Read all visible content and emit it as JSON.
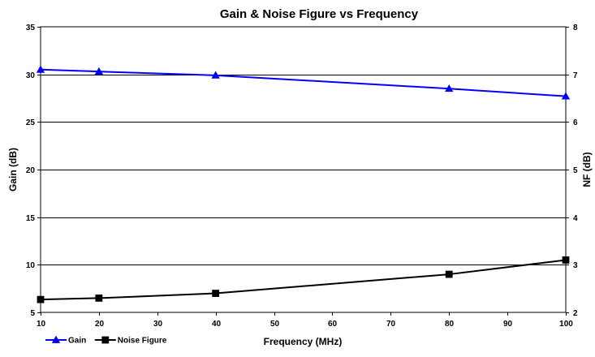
{
  "chart_data": {
    "type": "line",
    "title": "Gain & Noise Figure vs Frequency",
    "xlabel": "Frequency (MHz)",
    "ylabel_left": "Gain (dB)",
    "ylabel_right": "NF (dB)",
    "xlim": [
      10,
      100
    ],
    "x_ticks": [
      10,
      20,
      30,
      40,
      50,
      60,
      70,
      80,
      90,
      100
    ],
    "ylim_left": [
      5,
      35
    ],
    "y_ticks_left": [
      5,
      10,
      15,
      20,
      25,
      30,
      35
    ],
    "ylim_right": [
      2,
      8
    ],
    "y_ticks_right": [
      2,
      3,
      4,
      5,
      6,
      7,
      8
    ],
    "grid": "horizontal",
    "legend_position": "bottom-left",
    "series": [
      {
        "name": "Gain",
        "axis": "left",
        "color": "#0000ff",
        "marker": "triangle",
        "x": [
          10,
          20,
          40,
          80,
          100
        ],
        "y": [
          30.5,
          30.3,
          29.9,
          28.5,
          27.7
        ]
      },
      {
        "name": "Noise Figure",
        "axis": "right",
        "color": "#000000",
        "marker": "square",
        "x": [
          10,
          20,
          40,
          80,
          100
        ],
        "y": [
          2.27,
          2.3,
          2.4,
          2.8,
          3.1
        ]
      }
    ]
  }
}
